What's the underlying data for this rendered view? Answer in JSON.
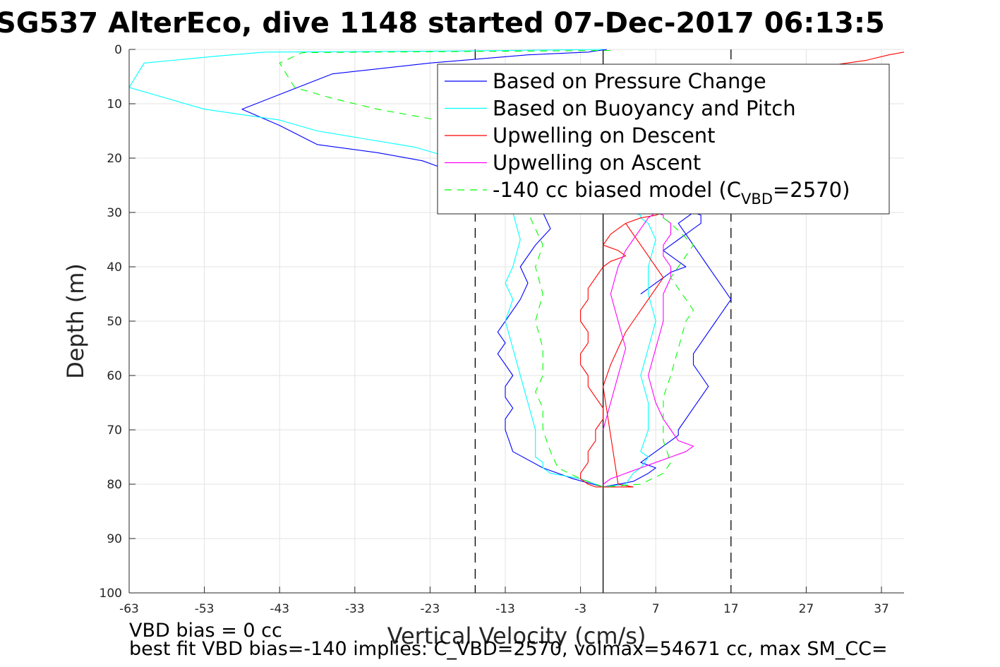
{
  "chart_data": {
    "type": "line",
    "title": "SG537 AlterEco, dive 1148 started 07-Dec-2017 06:13:5",
    "xlabel": "Vertical Velocity (cm/s)",
    "ylabel": "Depth (m)",
    "xlim": [
      -63,
      40
    ],
    "ylim": [
      0,
      100
    ],
    "y_reversed": true,
    "grid": true,
    "xticks": [
      -63,
      -53,
      -43,
      -33,
      -23,
      -13,
      -3,
      7,
      17,
      27,
      37
    ],
    "xtick_labels": [
      "-63",
      "-53",
      "-43",
      "-33",
      "-23",
      "-13",
      "-3",
      "7",
      "17",
      "27",
      "37"
    ],
    "yticks": [
      0,
      10,
      20,
      30,
      40,
      50,
      60,
      70,
      80,
      90,
      100
    ],
    "ytick_labels": [
      "0",
      "10",
      "20",
      "30",
      "40",
      "50",
      "60",
      "70",
      "80",
      "90",
      "100"
    ],
    "reference_lines": [
      {
        "x": 0,
        "style": "solid",
        "color": "#000000"
      },
      {
        "x": -17,
        "style": "dashed",
        "color": "#000000"
      },
      {
        "x": 17,
        "style": "dashed",
        "color": "#000000"
      }
    ],
    "legend_position": "top-right",
    "legend": [
      {
        "label": "Based on Pressure Change",
        "series": 0
      },
      {
        "label": "Based on Buoyancy and Pitch",
        "series": 1
      },
      {
        "label": "Upwelling on Descent",
        "series": 2
      },
      {
        "label": "Upwelling on Ascent",
        "series": 3
      },
      {
        "label_main": "-140 cc biased model (C",
        "label_sub": "VBD",
        "label_end": "=2570)",
        "series": 4
      }
    ],
    "series": [
      {
        "color": "#0000ff",
        "dash": "",
        "x": [
          0.5,
          -2,
          -10,
          -23,
          -36,
          -48,
          -43,
          -38,
          -30,
          -24,
          -21,
          -18,
          -8,
          -7,
          -9,
          -11,
          -10,
          -11,
          -12,
          -13,
          -14,
          -13,
          -14,
          -13,
          -12,
          -13,
          -13,
          -12,
          -13,
          -13,
          -12,
          -8,
          -4,
          0,
          4,
          6,
          7,
          5,
          7,
          8,
          9,
          10,
          10,
          11,
          12,
          13,
          14,
          13,
          12,
          12,
          13,
          14,
          15,
          16,
          17,
          16,
          15,
          14,
          13,
          12,
          11,
          10,
          11,
          12,
          13,
          13,
          12,
          11,
          10,
          9,
          8,
          9,
          10,
          11,
          9,
          8,
          7,
          6,
          5
        ],
        "y": [
          0,
          0.5,
          1,
          2.5,
          4.5,
          11,
          14,
          17.5,
          19,
          20.5,
          22,
          23,
          30,
          33,
          36,
          40,
          43,
          46,
          48,
          50,
          52,
          54,
          56,
          58,
          60,
          62,
          64,
          66,
          68,
          70,
          74,
          77,
          79,
          80.5,
          79.5,
          78,
          77,
          76,
          74,
          73,
          72,
          71,
          70,
          68,
          66,
          64,
          62,
          60,
          58,
          56,
          54,
          52,
          50,
          48,
          46,
          44,
          42,
          40,
          38,
          36,
          34,
          32,
          31,
          30,
          30.5,
          32,
          33,
          34,
          35,
          36,
          37,
          38,
          39,
          40,
          41,
          42,
          43,
          44,
          45
        ]
      },
      {
        "color": "#00ffff",
        "dash": "",
        "x": [
          0,
          -20,
          -45,
          -51,
          -61,
          -63,
          -53,
          -43,
          -38,
          -25,
          -20,
          -12,
          -11,
          -12,
          -13,
          -12,
          -13,
          -12,
          -11,
          -10,
          -9,
          -9,
          -8,
          -8,
          -7,
          -3,
          0,
          3,
          4,
          5,
          6,
          5,
          6,
          6,
          5,
          6,
          7,
          6,
          6,
          7,
          6,
          5,
          5,
          4
        ],
        "y": [
          0,
          0.3,
          0.5,
          1.2,
          2.5,
          7,
          11,
          13,
          15,
          18,
          20,
          30,
          35,
          40,
          43,
          46,
          50,
          55,
          60,
          65,
          70,
          75,
          76,
          77,
          78,
          79,
          80.5,
          80,
          78,
          77,
          75,
          74,
          70,
          65,
          60,
          55,
          50,
          45,
          40,
          35,
          32,
          31,
          30.5,
          30
        ]
      },
      {
        "color": "#ff0000",
        "dash": "",
        "x": [
          40,
          38,
          35,
          30,
          20,
          8,
          7,
          5,
          3,
          2,
          1,
          0,
          2,
          3,
          1,
          0,
          -1,
          -2,
          -2,
          -3,
          -3,
          -2,
          -2,
          -3,
          -3,
          -2,
          -2,
          -1,
          0,
          0,
          -1,
          -1,
          -2,
          -2,
          -3,
          -3,
          -2,
          -1,
          0,
          2,
          4,
          2,
          0,
          1,
          2,
          3,
          4,
          5,
          6,
          7,
          8,
          7,
          6,
          5,
          4,
          3
        ],
        "y": [
          0.5,
          1,
          2,
          3,
          4,
          30,
          30.5,
          31,
          32,
          33,
          34,
          36,
          37,
          38,
          39,
          40,
          42,
          44,
          46,
          48,
          50,
          52,
          54,
          56,
          58,
          60,
          62,
          64,
          66,
          68,
          70,
          72,
          74,
          76,
          78,
          79,
          80,
          80.5,
          80.5,
          80.5,
          80.5,
          80,
          62,
          58,
          55,
          52,
          50,
          48,
          46,
          44,
          42,
          40,
          38,
          36,
          34,
          32
        ]
      },
      {
        "color": "#ff00ff",
        "dash": "",
        "x": [
          0,
          1,
          2,
          3,
          5,
          7,
          9,
          11,
          12,
          10,
          9,
          8,
          7,
          6,
          7,
          8,
          8,
          9,
          9,
          8,
          8,
          9,
          9,
          8,
          8,
          7,
          6,
          5,
          4,
          3,
          2,
          1,
          2,
          3,
          2,
          1,
          0
        ],
        "y": [
          80,
          79,
          78.5,
          78,
          77,
          76,
          75,
          74,
          73,
          72,
          70,
          68,
          65,
          60,
          55,
          50,
          45,
          42,
          40,
          38,
          36,
          34,
          32,
          31,
          30.5,
          30,
          31,
          33,
          35,
          37,
          40,
          45,
          50,
          55,
          60,
          65,
          70
        ]
      },
      {
        "color": "#00ff00",
        "dash": "10,8",
        "x": [
          1,
          -40,
          -43,
          -41,
          -36,
          -30,
          -22,
          -18,
          -10,
          -9,
          -8,
          -9,
          -8,
          -9,
          -8,
          -8,
          -9,
          -8,
          -8,
          -7,
          -6,
          -3,
          0,
          5,
          8,
          9,
          8,
          8,
          8,
          9,
          10,
          11,
          12,
          11,
          10,
          9,
          10,
          11,
          12,
          9,
          7
        ],
        "y": [
          0.2,
          0.6,
          2.5,
          7,
          9,
          11,
          13,
          15,
          30,
          33,
          36,
          40,
          45,
          50,
          55,
          60,
          63,
          66,
          70,
          74,
          77,
          79,
          80.5,
          80,
          78,
          76,
          72,
          68,
          64,
          60,
          55,
          50,
          48,
          46,
          44,
          42,
          40,
          38,
          36,
          32,
          30
        ]
      }
    ]
  },
  "footer": {
    "line1": "VBD bias = 0 cc",
    "line2": "best fit VBD bias=-140 implies: C_VBD=2570, volmax=54671 cc, max SM_CC="
  }
}
